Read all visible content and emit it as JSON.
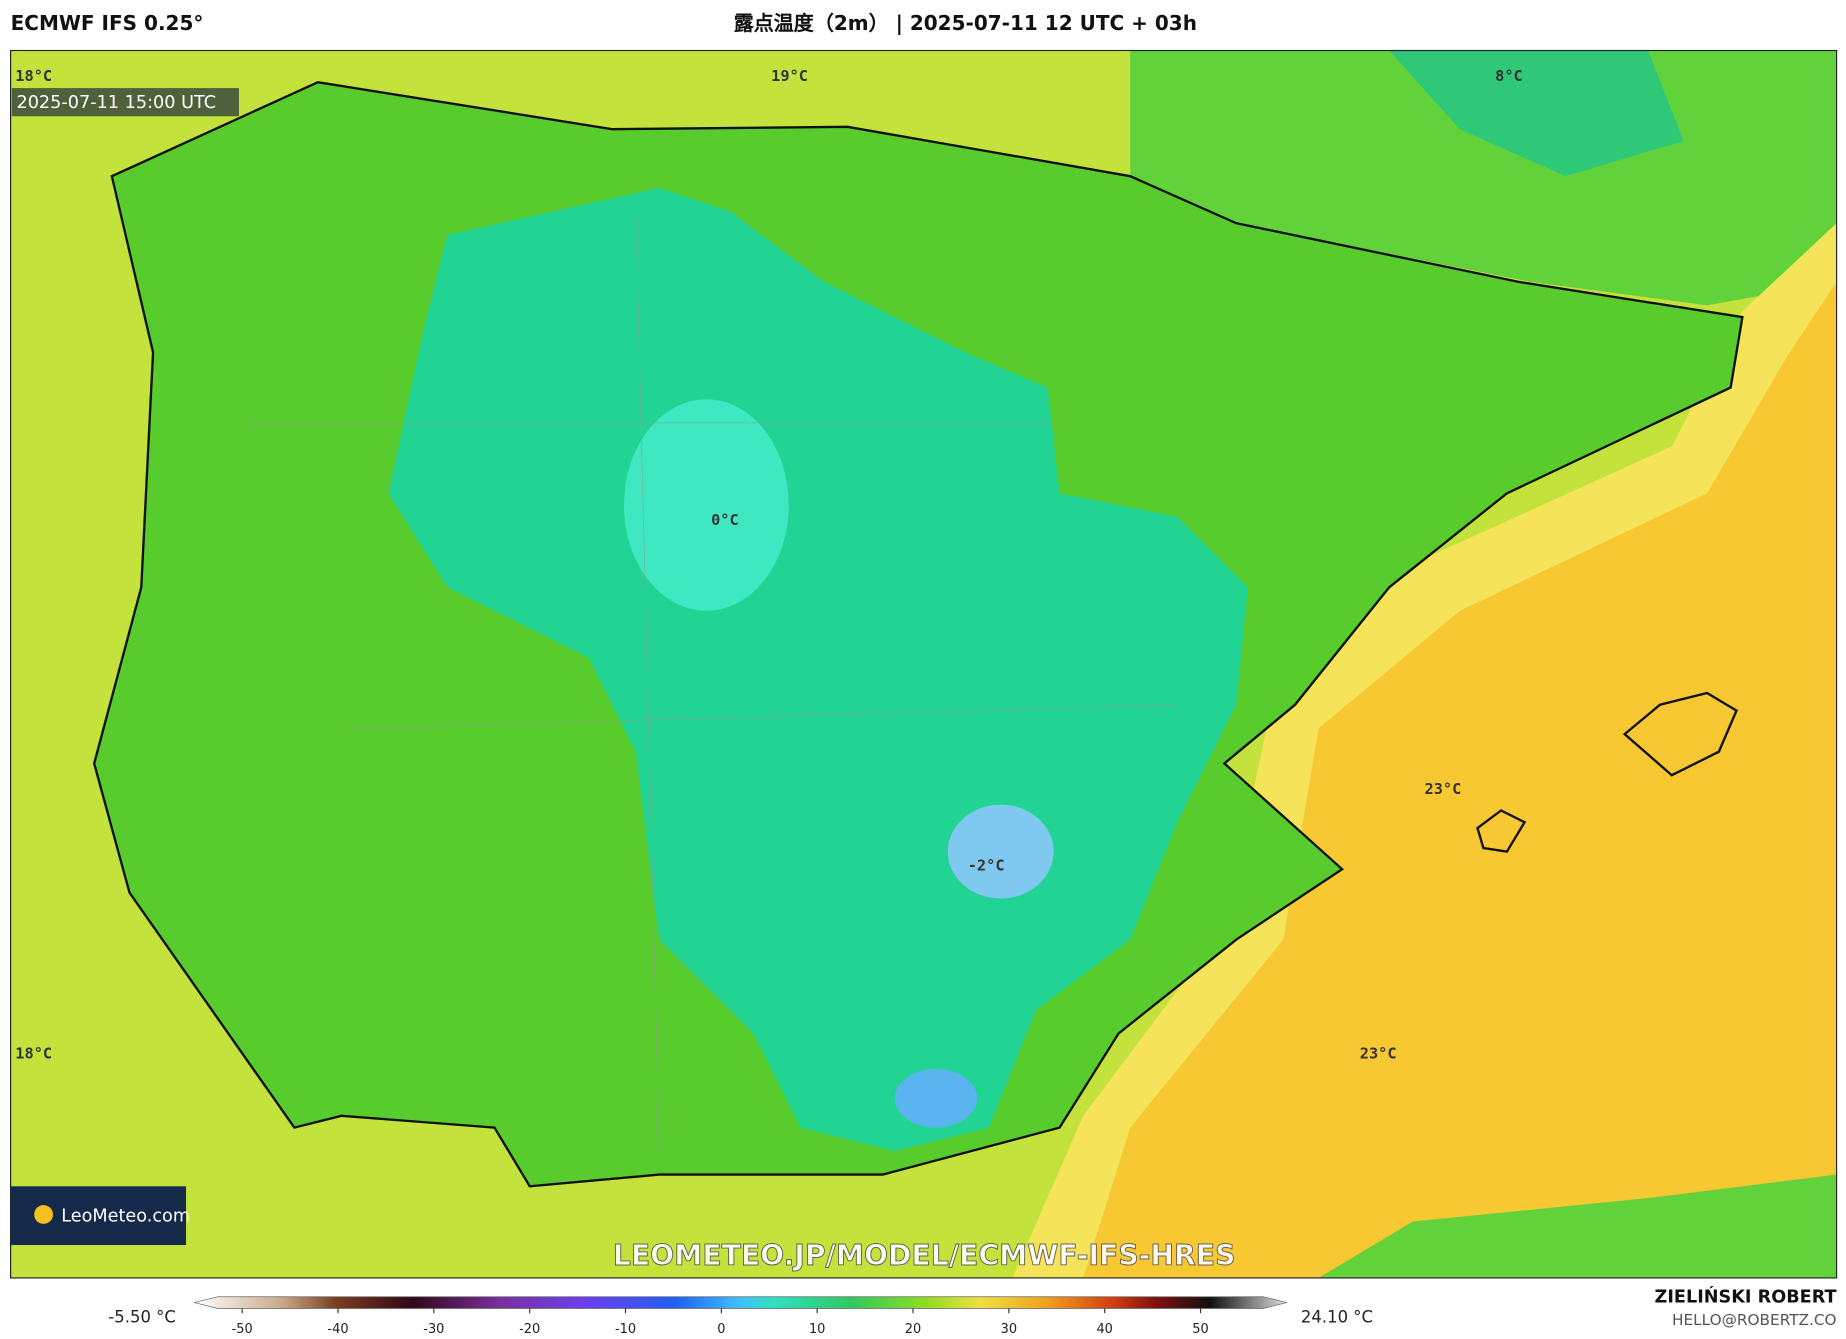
{
  "header": {
    "model": "ECMWF IFS 0.25°",
    "title": "露点温度（2m） | 2025-07-11 12 UTC + 03h"
  },
  "map": {
    "valid_time": "2025-07-11 15:00 UTC",
    "labels": [
      "18°C",
      "19°C",
      "8°C",
      "0°C",
      "-2°C",
      "23°C",
      "23°C",
      "18°C"
    ],
    "watermark": "LEOMETEO.JP/MODEL/ECMWF-IFS-HRES",
    "logo": "LeoMeteo.com"
  },
  "colorbar": {
    "min_label": "-5.50 °C",
    "max_label": "24.10 °C",
    "lim": [
      -55,
      59
    ],
    "ticks": [
      -50,
      -40,
      -30,
      -20,
      -10,
      0,
      10,
      20,
      30,
      40,
      50
    ]
  },
  "credits": {
    "author": "ZIELIŃSKI ROBERT",
    "contact": "HELLO@ROBERTZ.CO"
  }
}
